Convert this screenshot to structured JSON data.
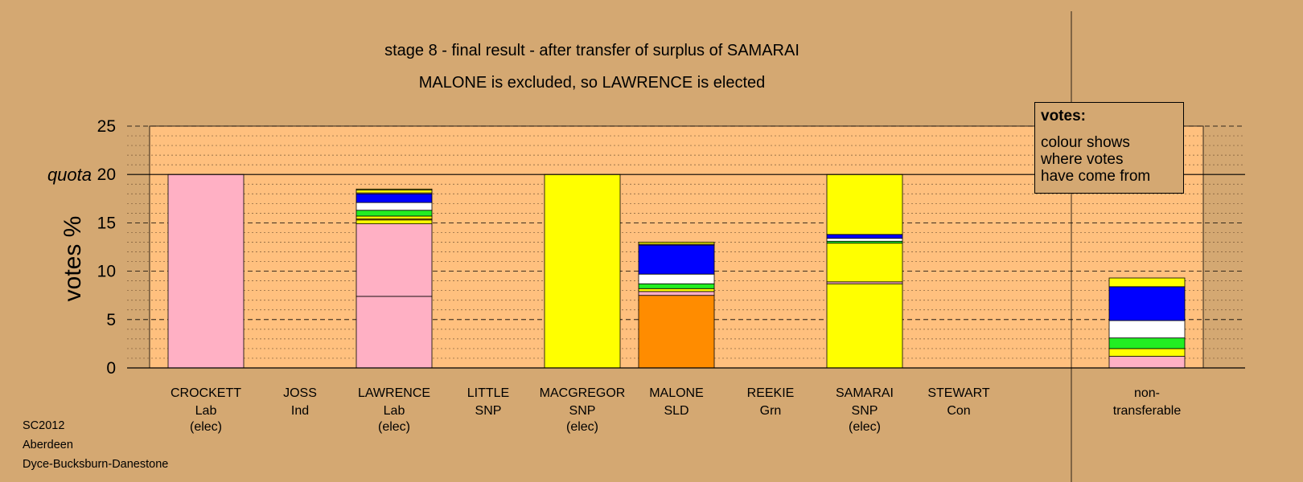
{
  "header": {
    "title": "stage 8 - final result - after transfer of surplus of SAMARAI",
    "subtitle": "MALONE is excluded, so LAWRENCE is elected"
  },
  "legend": {
    "title": "votes:",
    "text": "colour shows\nwhere votes\nhave come from"
  },
  "footer": {
    "election": "SC2012",
    "council": "Aberdeen",
    "ward": "Dyce-Bucksburn-Danestone"
  },
  "colors": {
    "background": "#D4A872",
    "plot_area": "#FFC07E",
    "Lab": "#FFB0C4",
    "SNP": "#FFFF00",
    "SLD": "#FF8C00",
    "Con": "#0000FF",
    "Ind": "#FFFFFF",
    "Grn": "#22EE22"
  },
  "chart_data": {
    "type": "bar",
    "stacked": true,
    "ylabel": "votes %",
    "ylim": [
      0,
      25
    ],
    "yticks": [
      0,
      5,
      10,
      15,
      20,
      25
    ],
    "quota": {
      "label": "quota",
      "value": 20
    },
    "grid": true,
    "legend_placement": "top-right",
    "categories": [
      {
        "name": "CROCKETT",
        "party": "Lab",
        "status": "(elec)"
      },
      {
        "name": "JOSS",
        "party": "Ind",
        "status": ""
      },
      {
        "name": "LAWRENCE",
        "party": "Lab",
        "status": "(elec)"
      },
      {
        "name": "LITTLE",
        "party": "SNP",
        "status": ""
      },
      {
        "name": "MACGREGOR",
        "party": "SNP",
        "status": "(elec)"
      },
      {
        "name": "MALONE",
        "party": "SLD",
        "status": ""
      },
      {
        "name": "REEKIE",
        "party": "Grn",
        "status": ""
      },
      {
        "name": "SAMARAI",
        "party": "SNP",
        "status": "(elec)"
      },
      {
        "name": "STEWART",
        "party": "Con",
        "status": ""
      }
    ],
    "nontransferable": {
      "label_line1": "non-",
      "label_line2": "transferable"
    },
    "stacks": [
      [
        {
          "from": "Lab",
          "value": 20.0
        }
      ],
      [],
      [
        {
          "from": "Lab",
          "value": 7.4
        },
        {
          "from": "Lab",
          "value": 7.5
        },
        {
          "from": "SNP",
          "value": 0.4
        },
        {
          "from": "SLD",
          "value": 0.1
        },
        {
          "from": "SNP",
          "value": 0.3
        },
        {
          "from": "Grn",
          "value": 0.6
        },
        {
          "from": "Ind",
          "value": 0.8
        },
        {
          "from": "Con",
          "value": 0.9
        },
        {
          "from": "Lab",
          "value": 0.1
        },
        {
          "from": "SNP",
          "value": 0.3
        },
        {
          "from": "SNP",
          "value": 0.1
        }
      ],
      [],
      [
        {
          "from": "SNP",
          "value": 20.0
        }
      ],
      [
        {
          "from": "SLD",
          "value": 7.5
        },
        {
          "from": "Lab",
          "value": 0.4
        },
        {
          "from": "SNP",
          "value": 0.3
        },
        {
          "from": "Grn",
          "value": 0.5
        },
        {
          "from": "Ind",
          "value": 1.0
        },
        {
          "from": "Con",
          "value": 3.0
        },
        {
          "from": "Lab",
          "value": 0.1
        },
        {
          "from": "SNP",
          "value": 0.2
        }
      ],
      [],
      [
        {
          "from": "SNP",
          "value": 8.7
        },
        {
          "from": "Lab",
          "value": 0.2
        },
        {
          "from": "SNP",
          "value": 4.0
        },
        {
          "from": "Grn",
          "value": 0.2
        },
        {
          "from": "Ind",
          "value": 0.3
        },
        {
          "from": "Con",
          "value": 0.4
        },
        {
          "from": "SNP",
          "value": 6.2
        }
      ],
      []
    ],
    "nontransferable_stack": [
      {
        "from": "Lab",
        "value": 1.2
      },
      {
        "from": "SNP",
        "value": 0.8
      },
      {
        "from": "Grn",
        "value": 1.1
      },
      {
        "from": "Ind",
        "value": 1.8
      },
      {
        "from": "Con",
        "value": 3.5
      },
      {
        "from": "SNP",
        "value": 0.9
      }
    ]
  }
}
